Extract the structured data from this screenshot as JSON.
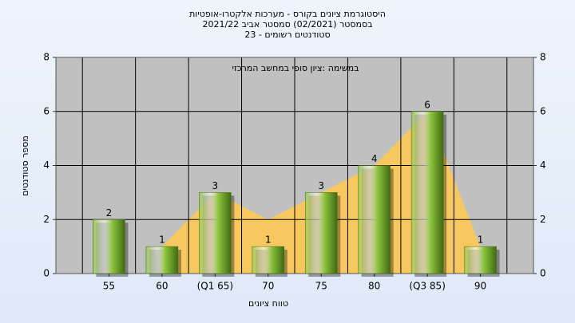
{
  "chart_data": {
    "type": "bar",
    "title": "היסטוגרמת ציונים בקורס - מערכות אלקטרו-אופטיות",
    "subtitle": "בסמסטר  (02/2021)  סמסטר אביב 2021/22",
    "subtitle2": "סטודנטים רשומים - 23",
    "annotation": "במשימה :ציון סופי במחשב המרכזי",
    "x_label": "טווח ציונים",
    "y_label": "מספר סטודנטים",
    "categories": [
      "55",
      "60",
      "(Q1 65)",
      "70",
      "75",
      "80",
      "(Q3 85)",
      "90"
    ],
    "values": [
      2,
      1,
      3,
      1,
      3,
      4,
      6,
      1
    ],
    "color": "#8cc43c",
    "area": {
      "color": "#ffc94d",
      "values": [
        null,
        1,
        3,
        2,
        3,
        4,
        6,
        1
      ]
    },
    "ylim": [
      0,
      8
    ],
    "yticks": [
      0,
      2,
      4,
      6,
      8
    ],
    "y2lim": [
      0,
      8
    ],
    "y2ticks": [
      0,
      2,
      4,
      6,
      8
    ],
    "grid": true
  }
}
